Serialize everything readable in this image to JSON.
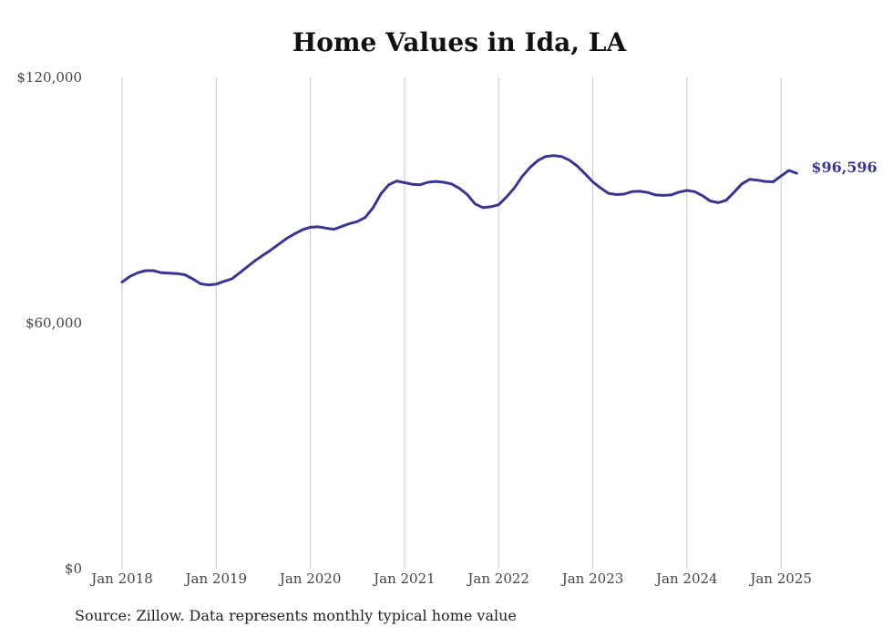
{
  "chart_data": {
    "type": "line",
    "title": "Home Values in Ida, LA",
    "xlabel": "",
    "ylabel": "",
    "x_tick_labels": [
      "Jan 2018",
      "Jan 2019",
      "Jan 2020",
      "Jan 2021",
      "Jan 2022",
      "Jan 2023",
      "Jan 2024",
      "Jan 2025"
    ],
    "y_tick_labels": [
      "$0",
      "$60,000",
      "$120,000"
    ],
    "y_ticks": [
      0,
      60000,
      120000
    ],
    "ylim": [
      0,
      120000
    ],
    "xlim": [
      "2018-01",
      "2025-03"
    ],
    "grid": "vertical",
    "color": "#3b3590",
    "end_label": "$96,596",
    "series": [
      {
        "x": [
          "2018-01",
          "2018-02",
          "2018-03",
          "2018-04",
          "2018-05",
          "2018-06",
          "2018-07",
          "2018-08",
          "2018-09",
          "2018-10",
          "2018-11",
          "2018-12",
          "2019-01",
          "2019-02",
          "2019-03",
          "2019-04",
          "2019-05",
          "2019-06",
          "2019-07",
          "2019-08",
          "2019-09",
          "2019-10",
          "2019-11",
          "2019-12",
          "2020-01",
          "2020-02",
          "2020-03",
          "2020-04",
          "2020-05",
          "2020-06",
          "2020-07",
          "2020-08",
          "2020-09",
          "2020-10",
          "2020-11",
          "2020-12",
          "2021-01",
          "2021-02",
          "2021-03",
          "2021-04",
          "2021-05",
          "2021-06",
          "2021-07",
          "2021-08",
          "2021-09",
          "2021-10",
          "2021-11",
          "2021-12",
          "2022-01",
          "2022-02",
          "2022-03",
          "2022-04",
          "2022-05",
          "2022-06",
          "2022-07",
          "2022-08",
          "2022-09",
          "2022-10",
          "2022-11",
          "2022-12",
          "2023-01",
          "2023-02",
          "2023-03",
          "2023-04",
          "2023-05",
          "2023-06",
          "2023-07",
          "2023-08",
          "2023-09",
          "2023-10",
          "2023-11",
          "2023-12",
          "2024-01",
          "2024-02",
          "2024-03",
          "2024-04",
          "2024-05",
          "2024-06",
          "2024-07",
          "2024-08",
          "2024-09",
          "2024-10",
          "2024-11",
          "2024-12",
          "2025-01",
          "2025-02",
          "2025-03"
        ],
        "values": [
          70000,
          71400,
          72300,
          72800,
          72800,
          72300,
          72200,
          72100,
          71800,
          70800,
          69600,
          69300,
          69500,
          70200,
          70800,
          72300,
          73800,
          75300,
          76600,
          77900,
          79300,
          80700,
          81800,
          82800,
          83400,
          83500,
          83200,
          82900,
          83600,
          84300,
          84800,
          85800,
          88200,
          91600,
          93800,
          94700,
          94300,
          93900,
          93800,
          94400,
          94600,
          94400,
          94000,
          92900,
          91400,
          89100,
          88200,
          88400,
          88900,
          90800,
          93000,
          95800,
          98000,
          99700,
          100700,
          100900,
          100700,
          99800,
          98400,
          96500,
          94500,
          93000,
          91700,
          91400,
          91500,
          92100,
          92200,
          91900,
          91300,
          91200,
          91300,
          92000,
          92400,
          92100,
          91100,
          89800,
          89400,
          90000,
          91900,
          94000,
          95100,
          94900,
          94600,
          94500,
          95900,
          97300,
          96596
        ]
      }
    ]
  },
  "footer": {
    "source": "Source: Zillow. Data represents monthly typical home value"
  }
}
